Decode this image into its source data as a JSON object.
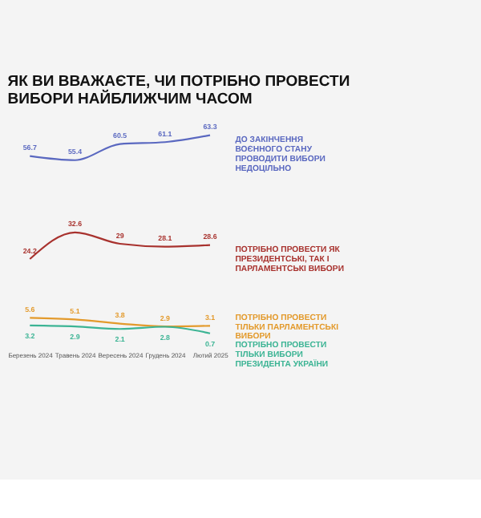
{
  "chart_data": {
    "type": "line",
    "title": "ЯК ВИ ВВАЖАЄТЕ, ЧИ ПОТРІБНО ПРОВЕСТИ ВИБОРИ НАЙБЛИЖЧИМ ЧАСОМ",
    "categories": [
      "Березень 2024",
      "Травень 2024",
      "Вересень 2024",
      "Грудень 2024",
      "Лютий 2025"
    ],
    "series": [
      {
        "name": "ДО ЗАКІНЧЕННЯ ВОЄННОГО СТАНУ ПРОВОДИТИ ВИБОРИ НЕДОЦІЛЬНО",
        "color": "#5a68c0",
        "values": [
          56.7,
          55.4,
          60.5,
          61.1,
          63.3
        ]
      },
      {
        "name": "ПОТРІБНО ПРОВЕСТИ ЯК ПРЕЗИДЕНТСЬКІ, ТАК І ПАРЛАМЕНТСЬКІ ВИБОРИ",
        "color": "#a8322e",
        "values": [
          24.2,
          32.6,
          29,
          28.1,
          28.6
        ]
      },
      {
        "name": "ПОТРІБНО ПРОВЕСТИ ТІЛЬКИ ПАРЛАМЕНТСЬКІ ВИБОРИ",
        "color": "#e39a2c",
        "values": [
          5.6,
          5.1,
          3.8,
          2.9,
          3.1
        ]
      },
      {
        "name": "ПОТРІБНО ПРОВЕСТИ ТІЛЬКИ ВИБОРИ ПРЕЗИДЕНТА УКРАЇНИ",
        "color": "#3cb494",
        "values": [
          3.2,
          2.9,
          2.1,
          2.8,
          0.7
        ]
      }
    ],
    "data_labels": true,
    "marker": "none",
    "line_style": "solid"
  }
}
